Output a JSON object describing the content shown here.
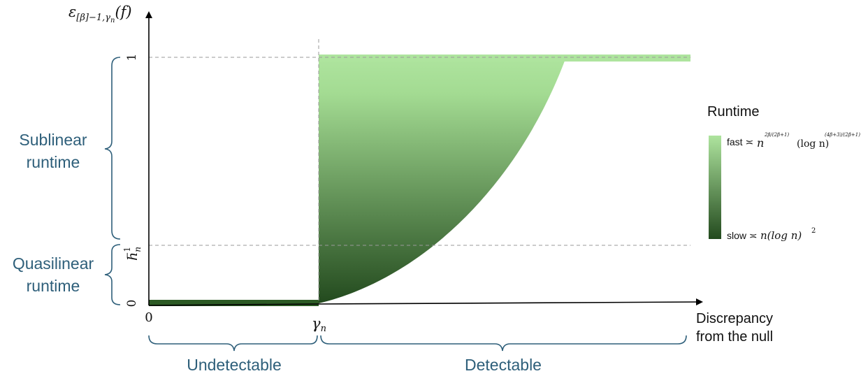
{
  "axes": {
    "y_label": "ε",
    "y_label_sub": "[β]−1,γ",
    "y_label_sub2": "n",
    "y_label_tail": "(f)",
    "x_label_line1": "Discrepancy",
    "x_label_line2": "from the null",
    "y_tick_one": "1",
    "y_tick_zero": "0",
    "y_tick_h_base": "h",
    "y_tick_h_sub": "n",
    "y_tick_h_sup": "−1",
    "x_tick_zero": "0",
    "x_tick_gamma": "γ",
    "x_tick_gamma_sub": "n"
  },
  "regions": {
    "sublinear_line1": "Sublinear",
    "sublinear_line2": "runtime",
    "quasilinear_line1": "Quasilinear",
    "quasilinear_line2": "runtime",
    "undetectable": "Undetectable",
    "detectable": "Detectable"
  },
  "legend": {
    "title": "Runtime",
    "fast_label": "fast ≍ ",
    "fast_n": "n",
    "fast_exp": "2β/(2β+1)",
    "fast_log": "(log n)",
    "fast_log_exp": "(4β+3)/(2β+1)",
    "slow_label": "slow ≍ ",
    "slow_expr": "n(log n)",
    "slow_exp": "2"
  },
  "colors": {
    "light_green": "#aee49e",
    "dark_green": "#234a1e",
    "bracket_blue": "#2e5f7a"
  }
}
